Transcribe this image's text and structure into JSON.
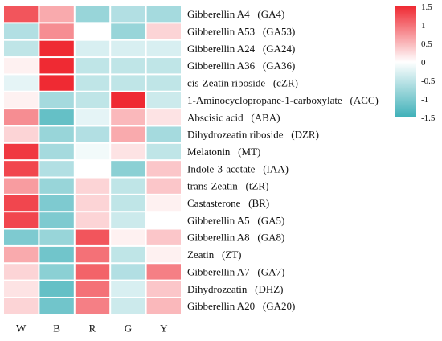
{
  "chart_data": {
    "type": "heatmap",
    "title": "",
    "xlabel": "",
    "ylabel": "",
    "columns": [
      "W",
      "B",
      "R",
      "G",
      "Y"
    ],
    "rows": [
      "Gibberellin A4   (GA4)",
      "Gibberellin A53   (GA53)",
      "Gibberellin A24   (GA24)",
      "Gibberellin A36   (GA36)",
      "cis-Zeatin riboside   (cZR)",
      "1-Aminocyclopropane-1-carboxylate   (ACC)",
      "Abscisic acid   (ABA)",
      "Dihydrozeatin riboside   (DZR)",
      "Melatonin   (MT)",
      "Indole-3-acetate   (IAA)",
      "trans-Zeatin   (tZR)",
      "Castasterone   (BR)",
      "Gibberellin A5   (GA5)",
      "Gibberellin A8   (GA8)",
      "Zeatin   (ZT)",
      "Gibberellin A7   (GA7)",
      "Dihydrozeatin   (DHZ)",
      "Gibberellin A20   (GA20)"
    ],
    "values": [
      [
        1.2,
        0.6,
        -0.8,
        -0.6,
        -0.7
      ],
      [
        -0.6,
        0.8,
        0.0,
        -0.8,
        0.3
      ],
      [
        -0.5,
        1.7,
        -0.3,
        -0.3,
        -0.3
      ],
      [
        0.1,
        1.5,
        -0.5,
        -0.5,
        -0.5
      ],
      [
        -0.2,
        1.5,
        -0.5,
        -0.5,
        -0.5
      ],
      [
        0.1,
        -0.7,
        -0.5,
        1.6,
        -0.4
      ],
      [
        0.8,
        -1.2,
        -0.2,
        0.5,
        0.2
      ],
      [
        0.3,
        -0.8,
        -0.6,
        0.6,
        -0.7
      ],
      [
        1.4,
        -0.7,
        -0.1,
        0.2,
        -0.5
      ],
      [
        1.3,
        -0.6,
        0.0,
        -0.9,
        0.4
      ],
      [
        0.7,
        -0.8,
        0.3,
        -0.5,
        0.4
      ],
      [
        1.3,
        -1.0,
        0.3,
        -0.5,
        0.1
      ],
      [
        1.3,
        -1.0,
        0.3,
        -0.4,
        0.0
      ],
      [
        -1.0,
        -0.8,
        1.2,
        0.1,
        0.4
      ],
      [
        0.6,
        -1.1,
        1.0,
        -0.5,
        0.1
      ],
      [
        0.3,
        -0.9,
        1.1,
        -0.6,
        0.9
      ],
      [
        0.2,
        -1.2,
        1.0,
        -0.3,
        0.4
      ],
      [
        0.3,
        -1.1,
        0.9,
        -0.4,
        0.5
      ]
    ],
    "colorscale": {
      "low": "#3eb0b8",
      "mid": "#ffffff",
      "high": "#ef2a33"
    },
    "legend": {
      "placement": "right",
      "range": [
        -1.5,
        1.5
      ],
      "ticks": [
        "1.5",
        "1",
        "0.5",
        "0",
        "-0.5",
        "-1",
        "-1.5"
      ],
      "tick_values": [
        1.5,
        1,
        0.5,
        0,
        -0.5,
        -1,
        -1.5
      ]
    },
    "grid": false
  }
}
